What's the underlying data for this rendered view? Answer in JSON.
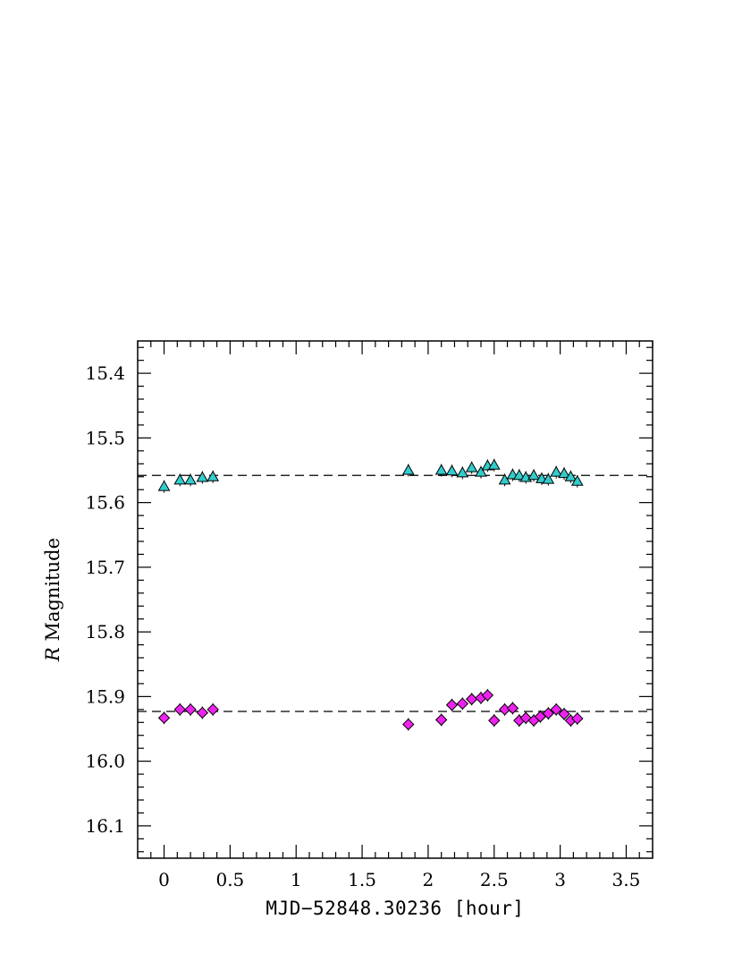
{
  "chart_data": {
    "type": "scatter",
    "xlabel": "MJD−52848.30236 [hour]",
    "ylabel_italic": "R",
    "ylabel_rest": " Magnitude",
    "xlim": [
      -0.2,
      3.7
    ],
    "ylim": [
      16.15,
      15.35
    ],
    "y_inverted": true,
    "x_major_ticks": [
      0,
      0.5,
      1,
      1.5,
      2,
      2.5,
      3,
      3.5
    ],
    "x_tick_labels": [
      "0",
      "0.5",
      "1",
      "1.5",
      "2",
      "2.5",
      "3",
      "3.5"
    ],
    "y_major_ticks": [
      15.4,
      15.5,
      15.6,
      15.7,
      15.8,
      15.9,
      16.0,
      16.1
    ],
    "y_tick_labels": [
      "15.4",
      "15.5",
      "15.6",
      "15.7",
      "15.8",
      "15.9",
      "16.0",
      "16.1"
    ],
    "reference_lines": [
      15.558,
      15.923
    ],
    "series": [
      {
        "marker": "triangle",
        "color": "#33cccc",
        "x": [
          0.0,
          0.12,
          0.2,
          0.29,
          0.37,
          1.85,
          2.1,
          2.18,
          2.26,
          2.33,
          2.4,
          2.45,
          2.5,
          2.58,
          2.64,
          2.69,
          2.74,
          2.8,
          2.86,
          2.91,
          2.97,
          3.03,
          3.08,
          3.13
        ],
        "y": [
          15.575,
          15.565,
          15.565,
          15.561,
          15.56,
          15.55,
          15.55,
          15.551,
          15.554,
          15.546,
          15.553,
          15.543,
          15.542,
          15.565,
          15.557,
          15.558,
          15.561,
          15.558,
          15.563,
          15.564,
          15.553,
          15.555,
          15.56,
          15.567
        ]
      },
      {
        "marker": "diamond",
        "color": "#ee22ee",
        "x": [
          0.0,
          0.12,
          0.2,
          0.29,
          0.37,
          1.85,
          2.1,
          2.18,
          2.26,
          2.33,
          2.4,
          2.45,
          2.5,
          2.58,
          2.64,
          2.69,
          2.74,
          2.8,
          2.85,
          2.91,
          2.97,
          3.03,
          3.08,
          3.13
        ],
        "y": [
          15.933,
          15.92,
          15.92,
          15.925,
          15.92,
          15.943,
          15.936,
          15.913,
          15.911,
          15.904,
          15.902,
          15.898,
          15.937,
          15.92,
          15.918,
          15.937,
          15.933,
          15.937,
          15.931,
          15.926,
          15.92,
          15.927,
          15.937,
          15.934
        ]
      }
    ]
  }
}
